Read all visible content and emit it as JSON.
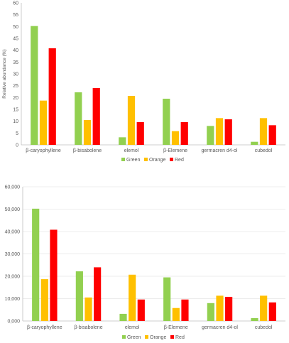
{
  "series_colors": {
    "Green": "#92d050",
    "Orange": "#ffc000",
    "Red": "#ff0000"
  },
  "chart_data": [
    {
      "type": "bar",
      "title": "",
      "xlabel": "",
      "ylabel": "Relative abundance (%)",
      "ylim": [
        0,
        60
      ],
      "yticks": [
        "0",
        "5",
        "10",
        "15",
        "20",
        "25",
        "30",
        "35",
        "40",
        "45",
        "50",
        "55",
        "60"
      ],
      "grid": false,
      "legend": "bottom",
      "categories": [
        "β-caryophyllene",
        "β-bisabolene",
        "elemol",
        "β-Elemene",
        "germacren d4-ol",
        "cubedol"
      ],
      "series": [
        {
          "name": "Green",
          "values": [
            50.2,
            22.2,
            3.2,
            19.5,
            8.0,
            1.3
          ]
        },
        {
          "name": "Orange",
          "values": [
            18.7,
            10.5,
            20.7,
            5.8,
            11.3,
            11.3
          ]
        },
        {
          "name": "Red",
          "values": [
            40.8,
            24.0,
            9.6,
            9.6,
            10.8,
            8.3
          ]
        }
      ]
    },
    {
      "type": "bar",
      "title": "",
      "xlabel": "",
      "ylabel": "",
      "ylim": [
        0,
        60000
      ],
      "yticks": [
        "0,000",
        "10,000",
        "20,000",
        "30,000",
        "40,000",
        "50,000",
        "60,000"
      ],
      "grid": true,
      "legend": "bottom",
      "categories": [
        "β-caryophyllene",
        "β-bisabolene",
        "elemol",
        "β-Elemene",
        "germacren d4-ol",
        "cubedol"
      ],
      "series": [
        {
          "name": "Green",
          "values": [
            50200,
            22200,
            3200,
            19500,
            8000,
            1300
          ]
        },
        {
          "name": "Orange",
          "values": [
            18700,
            10500,
            20700,
            5800,
            11300,
            11300
          ]
        },
        {
          "name": "Red",
          "values": [
            40800,
            24000,
            9600,
            9600,
            10800,
            8300
          ]
        }
      ]
    }
  ]
}
